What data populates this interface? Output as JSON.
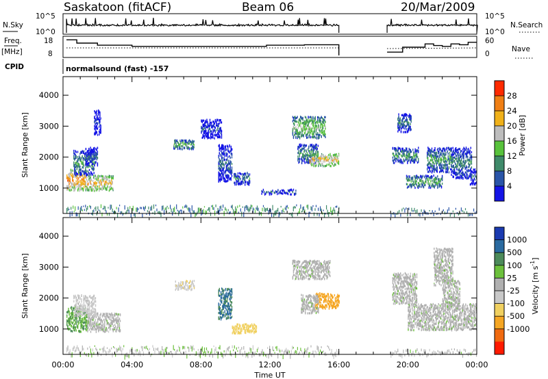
{
  "header": {
    "title": "Saskatoon (fitACF)",
    "beam": "Beam 06",
    "date": "20/Mar/2009"
  },
  "small_panels": {
    "nsky_label": "N.Sky",
    "nsky_ticks": [
      "10^5",
      "10^0"
    ],
    "nsearch_label": "N.Search",
    "freq_label": "Freq.",
    "freq_unit": "[MHz]",
    "freq_ticks": [
      "18",
      "8"
    ],
    "nave_label": "Nave",
    "nave_ticks": [
      "60",
      "0"
    ],
    "cpid_label": "CPID",
    "cpid_text": "normalsound (fast) -157"
  },
  "colors": {
    "power": [
      "#1414e6",
      "#2a55a8",
      "#3f8a6a",
      "#58c23c",
      "#bdbdbd",
      "#f0b11a",
      "#f07f14",
      "#ff2a00"
    ],
    "velocity": [
      "#ff1a00",
      "#f06a10",
      "#f5a623",
      "#f0d060",
      "#c8c8c8",
      "#b0b0b0",
      "#6cc03c",
      "#4c8a5a",
      "#2a6aa0",
      "#1a3ab0"
    ]
  },
  "chart_data": [
    {
      "type": "heatmap",
      "panel": "power",
      "title": "",
      "xlabel": "Time UT",
      "ylabel": "Slant Range [km]",
      "x_ticks": [
        "00:00",
        "04:00",
        "08:00",
        "12:00",
        "16:00",
        "20:00",
        "00:00"
      ],
      "y_ticks": [
        "1000",
        "2000",
        "3000",
        "4000"
      ],
      "xlim_hours": [
        0,
        24
      ],
      "ylim_km": [
        180,
        4600
      ],
      "colorbar_label": "Power [dB]",
      "colorbar_ticks": [
        "4",
        "8",
        "12",
        "16",
        "20",
        "24",
        "28"
      ],
      "data_gap_hours": [
        16.0,
        18.8
      ],
      "regions": [
        {
          "t": [
            0.2,
            1.3
          ],
          "r": [
            900,
            1600
          ],
          "v": 25
        },
        {
          "t": [
            1.3,
            2.9
          ],
          "r": [
            900,
            1400
          ],
          "v": 22
        },
        {
          "t": [
            0.6,
            1.8
          ],
          "r": [
            1400,
            2200
          ],
          "v": 12
        },
        {
          "t": [
            1.3,
            2.0
          ],
          "r": [
            1700,
            2300
          ],
          "v": 8
        },
        {
          "t": [
            1.8,
            2.2
          ],
          "r": [
            2700,
            3500
          ],
          "v": 4
        },
        {
          "t": [
            6.4,
            7.6
          ],
          "r": [
            2250,
            2550
          ],
          "v": 14
        },
        {
          "t": [
            8.0,
            9.2
          ],
          "r": [
            2600,
            3200
          ],
          "v": 6
        },
        {
          "t": [
            9.0,
            9.8
          ],
          "r": [
            1200,
            2400
          ],
          "v": 8
        },
        {
          "t": [
            9.9,
            10.8
          ],
          "r": [
            1100,
            1500
          ],
          "v": 10
        },
        {
          "t": [
            11.5,
            13.5
          ],
          "r": [
            780,
            950
          ],
          "v": 8
        },
        {
          "t": [
            13.3,
            15.2
          ],
          "r": [
            2600,
            3300
          ],
          "v": 16
        },
        {
          "t": [
            13.6,
            14.8
          ],
          "r": [
            1800,
            2400
          ],
          "v": 12
        },
        {
          "t": [
            14.3,
            16.0
          ],
          "r": [
            1700,
            2100
          ],
          "v": 22
        },
        {
          "t": [
            19.1,
            20.6
          ],
          "r": [
            1800,
            2300
          ],
          "v": 12
        },
        {
          "t": [
            19.4,
            20.2
          ],
          "r": [
            2800,
            3400
          ],
          "v": 10
        },
        {
          "t": [
            19.9,
            22.0
          ],
          "r": [
            1000,
            1400
          ],
          "v": 14
        },
        {
          "t": [
            21.1,
            22.5
          ],
          "r": [
            1500,
            2300
          ],
          "v": 12
        },
        {
          "t": [
            22.5,
            23.7
          ],
          "r": [
            1300,
            2300
          ],
          "v": 10
        },
        {
          "t": [
            23.6,
            24.0
          ],
          "r": [
            1100,
            1600
          ],
          "v": 8
        }
      ]
    },
    {
      "type": "heatmap",
      "panel": "velocity",
      "title": "",
      "xlabel": "Time UT",
      "ylabel": "Slant Range [km]",
      "x_ticks": [
        "00:00",
        "04:00",
        "08:00",
        "12:00",
        "16:00",
        "20:00",
        "00:00"
      ],
      "y_ticks": [
        "1000",
        "2000",
        "3000",
        "4000"
      ],
      "xlim_hours": [
        0,
        24
      ],
      "ylim_km": [
        180,
        4600
      ],
      "colorbar_label": "Velocity [m s^-1]",
      "colorbar_ticks": [
        "1000",
        "500",
        "100",
        "25",
        "-25",
        "-100",
        "-500",
        "-1000"
      ],
      "data_gap_hours": [
        16.0,
        18.8
      ],
      "regions": [
        {
          "t": [
            0.2,
            1.4
          ],
          "r": [
            900,
            1700
          ],
          "v": 100
        },
        {
          "t": [
            1.4,
            3.3
          ],
          "r": [
            900,
            1500
          ],
          "v": 0
        },
        {
          "t": [
            0.6,
            1.9
          ],
          "r": [
            1400,
            2100
          ],
          "v": -50
        },
        {
          "t": [
            6.5,
            7.6
          ],
          "r": [
            2250,
            2550
          ],
          "v": -80
        },
        {
          "t": [
            9.0,
            9.8
          ],
          "r": [
            1300,
            2300
          ],
          "v": 500
        },
        {
          "t": [
            9.8,
            11.2
          ],
          "r": [
            850,
            1150
          ],
          "v": -200
        },
        {
          "t": [
            13.3,
            15.5
          ],
          "r": [
            2600,
            3200
          ],
          "v": 0
        },
        {
          "t": [
            14.6,
            16.0
          ],
          "r": [
            1650,
            2150
          ],
          "v": -700
        },
        {
          "t": [
            13.8,
            14.8
          ],
          "r": [
            1500,
            2100
          ],
          "v": 0
        },
        {
          "t": [
            19.1,
            20.5
          ],
          "r": [
            1800,
            2800
          ],
          "v": 0
        },
        {
          "t": [
            20.0,
            24.0
          ],
          "r": [
            950,
            1800
          ],
          "v": 0
        },
        {
          "t": [
            21.5,
            22.6
          ],
          "r": [
            2400,
            3600
          ],
          "v": 0
        },
        {
          "t": [
            22.0,
            23.0
          ],
          "r": [
            1700,
            2600
          ],
          "v": 0
        }
      ]
    }
  ]
}
